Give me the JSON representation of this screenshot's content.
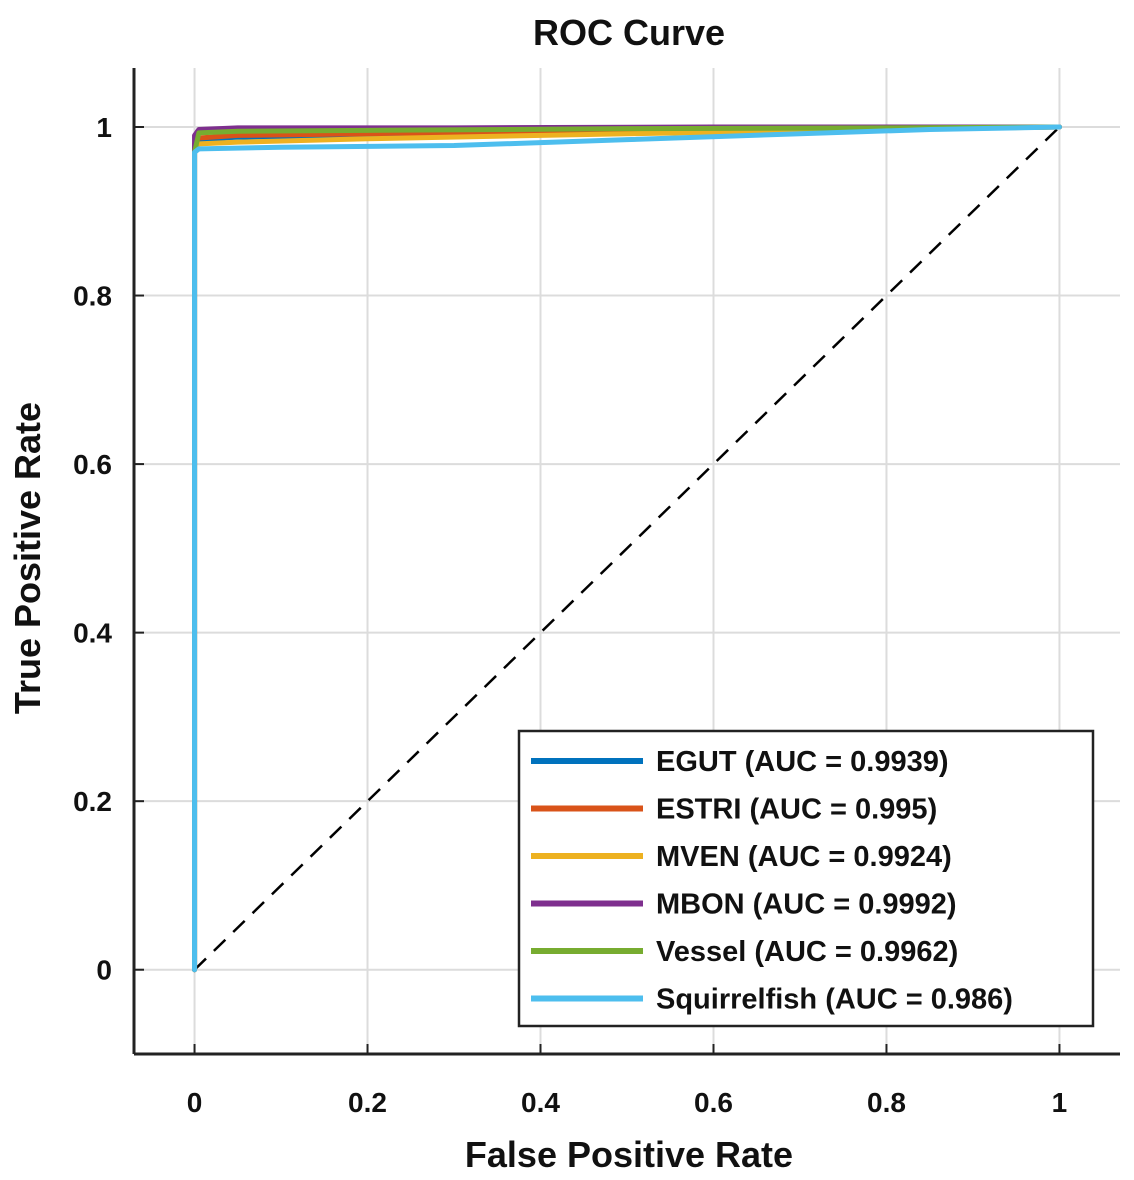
{
  "chart_data": {
    "type": "line",
    "title": "ROC Curve",
    "xlabel": "False Positive Rate",
    "ylabel": "True Positive Rate",
    "xlim": [
      -0.07,
      1.07
    ],
    "ylim": [
      -0.1,
      1.07
    ],
    "xticks": [
      0,
      0.2,
      0.4,
      0.6,
      0.8,
      1
    ],
    "xtick_labels": [
      "0",
      "0.2",
      "0.4",
      "0.6",
      "0.8",
      "1"
    ],
    "yticks": [
      0,
      0.2,
      0.4,
      0.6,
      0.8,
      1
    ],
    "ytick_labels": [
      "0",
      "0.2",
      "0.4",
      "0.6",
      "0.8",
      "1"
    ],
    "grid": true,
    "legend_position": "bottom-right",
    "diagonal": {
      "x": [
        0,
        1
      ],
      "y": [
        0,
        1
      ],
      "style": "dashed",
      "color": "#000000"
    },
    "series": [
      {
        "name": "EGUT",
        "label": "EGUT (AUC = 0.9939)",
        "auc": 0.9939,
        "color": "#0072BD",
        "x": [
          0,
          0,
          0.005,
          0.05,
          0.2,
          0.5,
          0.8,
          1
        ],
        "y": [
          0,
          0.975,
          0.985,
          0.988,
          0.99,
          0.995,
          0.998,
          1
        ]
      },
      {
        "name": "ESTRI",
        "label": "ESTRI  (AUC = 0.995)",
        "auc": 0.995,
        "color": "#D95319",
        "x": [
          0,
          0,
          0.005,
          0.05,
          0.2,
          0.5,
          0.8,
          1
        ],
        "y": [
          0,
          0.98,
          0.987,
          0.99,
          0.992,
          0.996,
          0.998,
          1
        ]
      },
      {
        "name": "MVEN",
        "label": "MVEN  (AUC = 0.9924)",
        "auc": 0.9924,
        "color": "#EDB120",
        "x": [
          0,
          0,
          0.005,
          0.05,
          0.2,
          0.5,
          0.8,
          1
        ],
        "y": [
          0,
          0.975,
          0.98,
          0.982,
          0.986,
          0.992,
          0.997,
          1
        ]
      },
      {
        "name": "MBON",
        "label": "MBON (AUC = 0.9992)",
        "auc": 0.9992,
        "color": "#7E2F8E",
        "x": [
          0,
          0,
          0.005,
          0.05,
          0.3,
          0.6,
          1
        ],
        "y": [
          0,
          0.99,
          0.997,
          0.999,
          0.999,
          1,
          1
        ]
      },
      {
        "name": "Vessel",
        "label": "Vessel (AUC = 0.9962)",
        "auc": 0.9962,
        "color": "#77AC30",
        "x": [
          0,
          0,
          0.005,
          0.05,
          0.2,
          0.5,
          0.8,
          1
        ],
        "y": [
          0,
          0.97,
          0.993,
          0.995,
          0.996,
          0.998,
          0.999,
          1
        ]
      },
      {
        "name": "Squirrelfish",
        "label": "Squirrelfish (AUC = 0.986)",
        "auc": 0.986,
        "color": "#4DBEEE",
        "x": [
          0,
          0,
          0.005,
          0.1,
          0.3,
          0.5,
          0.7,
          0.85,
          1
        ],
        "y": [
          0,
          0.97,
          0.974,
          0.976,
          0.978,
          0.985,
          0.992,
          0.997,
          1
        ]
      }
    ]
  }
}
